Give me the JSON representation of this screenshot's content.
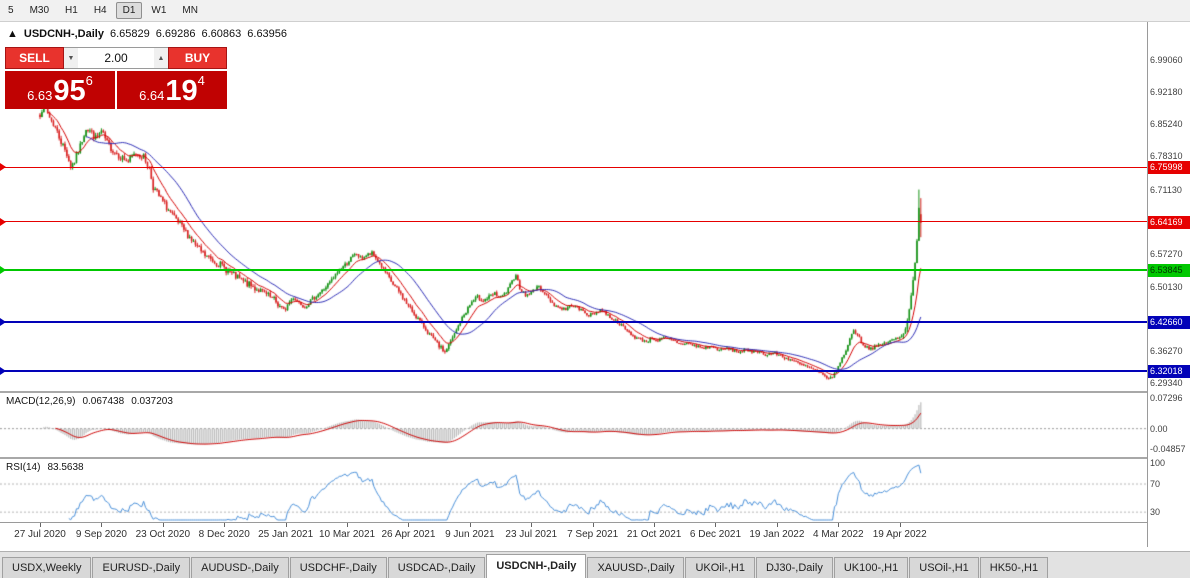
{
  "toolbar": {
    "timeframes": [
      {
        "label": "5",
        "active": false
      },
      {
        "label": "M30",
        "active": false
      },
      {
        "label": "H1",
        "active": false
      },
      {
        "label": "H4",
        "active": false
      },
      {
        "label": "D1",
        "active": true
      },
      {
        "label": "W1",
        "active": false
      },
      {
        "label": "MN",
        "active": false
      }
    ]
  },
  "chart": {
    "title_marker": "▲",
    "symbol_title": "USDCNH-,Daily",
    "ohlc": {
      "open": "6.65829",
      "high": "6.69286",
      "low": "6.60863",
      "close": "6.63956"
    }
  },
  "trade_panel": {
    "sell_label": "SELL",
    "buy_label": "BUY",
    "volume": "2.00",
    "vol_down_glyph": "▼",
    "vol_up_glyph": "▲",
    "sell_price": {
      "small": "6.63",
      "big": "95",
      "sup": "6"
    },
    "buy_price": {
      "small": "6.64",
      "big": "19",
      "sup": "4"
    }
  },
  "price_axis": {
    "labels": [
      {
        "text": "6.99060",
        "price": 6.9906
      },
      {
        "text": "6.92180",
        "price": 6.9218
      },
      {
        "text": "6.85240",
        "price": 6.8524
      },
      {
        "text": "6.78310",
        "price": 6.7831
      },
      {
        "text": "6.71130",
        "price": 6.7113
      },
      {
        "text": "6.57270",
        "price": 6.5727
      },
      {
        "text": "6.50130",
        "price": 6.5013
      },
      {
        "text": "6.36270",
        "price": 6.3627
      },
      {
        "text": "6.29340",
        "price": 6.2934
      }
    ]
  },
  "hlines": [
    {
      "text": "6.75998",
      "price": 6.75998,
      "color": "#e60000",
      "thickness": 1,
      "badge_text": "#ffffff"
    },
    {
      "text": "6.64169",
      "price": 6.64169,
      "color": "#e60000",
      "thickness": 1,
      "badge_text": "#ffffff"
    },
    {
      "text": "6.53845",
      "price": 6.53845,
      "color": "#00c800",
      "thickness": 2,
      "badge_text": "#003300"
    },
    {
      "text": "6.42660",
      "price": 6.4266,
      "color": "#0202b8",
      "thickness": 2,
      "badge_text": "#ffffff"
    },
    {
      "text": "6.32018",
      "price": 6.32018,
      "color": "#0202b8",
      "thickness": 2,
      "badge_text": "#ffffff"
    }
  ],
  "indicators": {
    "macd": {
      "name": "MACD(12,26,9)",
      "value_main": "0.067438",
      "value_signal": "0.037203",
      "axis": [
        {
          "text": "0.07296",
          "value": 0.07296
        },
        {
          "text": "0.00",
          "value": 0
        },
        {
          "text": "-0.04857",
          "value": -0.04857
        }
      ],
      "range": {
        "max": 0.0846,
        "min": -0.065
      },
      "levels": [
        0
      ]
    },
    "rsi": {
      "name": "RSI(14)",
      "value": "83.5638",
      "axis": [
        {
          "text": "100",
          "value": 100
        },
        {
          "text": "70",
          "value": 70
        },
        {
          "text": "30",
          "value": 30
        }
      ],
      "range": {
        "max": 105.6,
        "min": 17.4
      },
      "levels": [
        70,
        30
      ]
    }
  },
  "time_axis": {
    "labels": [
      "27 Jul 2020",
      "9 Sep 2020",
      "23 Oct 2020",
      "8 Dec 2020",
      "25 Jan 2021",
      "10 Mar 2021",
      "26 Apr 2021",
      "9 Jun 2021",
      "23 Jul 2021",
      "7 Sep 2021",
      "21 Oct 2021",
      "6 Dec 2021",
      "19 Jan 2022",
      "4 Mar 2022",
      "19 Apr 2022"
    ]
  },
  "tabs": [
    {
      "label": "USDX,Weekly",
      "active": false
    },
    {
      "label": "EURUSD-,Daily",
      "active": false
    },
    {
      "label": "AUDUSD-,Daily",
      "active": false
    },
    {
      "label": "USDCHF-,Daily",
      "active": false
    },
    {
      "label": "USDCAD-,Daily",
      "active": false
    },
    {
      "label": "USDCNH-,Daily",
      "active": true
    },
    {
      "label": "XAUUSD-,Daily",
      "active": false
    },
    {
      "label": "UKOil-,H1",
      "active": false
    },
    {
      "label": "DJ30-,Daily",
      "active": false
    },
    {
      "label": "UK100-,H1",
      "active": false
    },
    {
      "label": "USOil-,H1",
      "active": false
    },
    {
      "label": "HK50-,H1",
      "active": false
    }
  ],
  "chart_data": {
    "type": "candlestick",
    "symbol": "USDCNH-",
    "timeframe": "Daily",
    "price_range": {
      "min": 6.2792,
      "max": 7.0726
    },
    "days_total": 460,
    "last_candle": {
      "open": 6.65829,
      "high": 6.69286,
      "low": 6.60863,
      "close": 6.63956
    },
    "spike_high": 6.7113,
    "anchors": [
      [
        0,
        6.875
      ],
      [
        2,
        6.895
      ],
      [
        5,
        6.868
      ],
      [
        8,
        6.845
      ],
      [
        11,
        6.815
      ],
      [
        14,
        6.788
      ],
      [
        16,
        6.762
      ],
      [
        18,
        6.772
      ],
      [
        21,
        6.805
      ],
      [
        24,
        6.845
      ],
      [
        26,
        6.838
      ],
      [
        29,
        6.822
      ],
      [
        32,
        6.836
      ],
      [
        35,
        6.812
      ],
      [
        38,
        6.796
      ],
      [
        42,
        6.782
      ],
      [
        46,
        6.772
      ],
      [
        50,
        6.79
      ],
      [
        54,
        6.782
      ],
      [
        57,
        6.757
      ],
      [
        59,
        6.717
      ],
      [
        62,
        6.697
      ],
      [
        66,
        6.673
      ],
      [
        70,
        6.649
      ],
      [
        74,
        6.629
      ],
      [
        78,
        6.609
      ],
      [
        82,
        6.586
      ],
      [
        86,
        6.569
      ],
      [
        90,
        6.559
      ],
      [
        94,
        6.549
      ],
      [
        98,
        6.536
      ],
      [
        102,
        6.523
      ],
      [
        106,
        6.513
      ],
      [
        110,
        6.503
      ],
      [
        114,
        6.495
      ],
      [
        118,
        6.484
      ],
      [
        122,
        6.473
      ],
      [
        125,
        6.459
      ],
      [
        127,
        6.449
      ],
      [
        129,
        6.463
      ],
      [
        132,
        6.479
      ],
      [
        135,
        6.469
      ],
      [
        138,
        6.459
      ],
      [
        141,
        6.471
      ],
      [
        144,
        6.483
      ],
      [
        147,
        6.493
      ],
      [
        150,
        6.506
      ],
      [
        153,
        6.521
      ],
      [
        156,
        6.539
      ],
      [
        159,
        6.549
      ],
      [
        162,
        6.563
      ],
      [
        165,
        6.573
      ],
      [
        167,
        6.563
      ],
      [
        170,
        6.569
      ],
      [
        173,
        6.573
      ],
      [
        176,
        6.559
      ],
      [
        179,
        6.539
      ],
      [
        182,
        6.519
      ],
      [
        185,
        6.501
      ],
      [
        188,
        6.486
      ],
      [
        191,
        6.466
      ],
      [
        194,
        6.449
      ],
      [
        197,
        6.433
      ],
      [
        200,
        6.416
      ],
      [
        203,
        6.399
      ],
      [
        206,
        6.383
      ],
      [
        209,
        6.369
      ],
      [
        211,
        6.361
      ],
      [
        213,
        6.376
      ],
      [
        216,
        6.399
      ],
      [
        219,
        6.426
      ],
      [
        222,
        6.449
      ],
      [
        225,
        6.469
      ],
      [
        228,
        6.479
      ],
      [
        231,
        6.473
      ],
      [
        234,
        6.479
      ],
      [
        237,
        6.486
      ],
      [
        240,
        6.479
      ],
      [
        243,
        6.489
      ],
      [
        246,
        6.513
      ],
      [
        248,
        6.529
      ],
      [
        250,
        6.499
      ],
      [
        253,
        6.483
      ],
      [
        256,
        6.489
      ],
      [
        259,
        6.503
      ],
      [
        262,
        6.493
      ],
      [
        265,
        6.476
      ],
      [
        268,
        6.463
      ],
      [
        271,
        6.456
      ],
      [
        274,
        6.453
      ],
      [
        277,
        6.463
      ],
      [
        280,
        6.456
      ],
      [
        283,
        6.449
      ],
      [
        286,
        6.441
      ],
      [
        289,
        6.444
      ],
      [
        292,
        6.453
      ],
      [
        295,
        6.444
      ],
      [
        298,
        6.433
      ],
      [
        301,
        6.426
      ],
      [
        304,
        6.414
      ],
      [
        307,
        6.403
      ],
      [
        310,
        6.393
      ],
      [
        313,
        6.388
      ],
      [
        316,
        6.384
      ],
      [
        319,
        6.391
      ],
      [
        322,
        6.386
      ],
      [
        325,
        6.391
      ],
      [
        328,
        6.388
      ],
      [
        331,
        6.384
      ],
      [
        334,
        6.378
      ],
      [
        337,
        6.381
      ],
      [
        340,
        6.376
      ],
      [
        343,
        6.373
      ],
      [
        346,
        6.369
      ],
      [
        349,
        6.373
      ],
      [
        352,
        6.369
      ],
      [
        355,
        6.365
      ],
      [
        358,
        6.369
      ],
      [
        361,
        6.365
      ],
      [
        364,
        6.361
      ],
      [
        367,
        6.365
      ],
      [
        370,
        6.361
      ],
      [
        373,
        6.365
      ],
      [
        376,
        6.359
      ],
      [
        379,
        6.355
      ],
      [
        382,
        6.359
      ],
      [
        385,
        6.355
      ],
      [
        388,
        6.349
      ],
      [
        391,
        6.345
      ],
      [
        394,
        6.339
      ],
      [
        397,
        6.333
      ],
      [
        400,
        6.329
      ],
      [
        403,
        6.323
      ],
      [
        406,
        6.316
      ],
      [
        409,
        6.309
      ],
      [
        412,
        6.304
      ],
      [
        414,
        6.313
      ],
      [
        416,
        6.329
      ],
      [
        418,
        6.347
      ],
      [
        420,
        6.366
      ],
      [
        422,
        6.389
      ],
      [
        424,
        6.409
      ],
      [
        426,
        6.399
      ],
      [
        428,
        6.383
      ],
      [
        430,
        6.373
      ],
      [
        433,
        6.369
      ],
      [
        436,
        6.373
      ],
      [
        439,
        6.378
      ],
      [
        442,
        6.383
      ],
      [
        445,
        6.388
      ],
      [
        448,
        6.393
      ],
      [
        450,
        6.401
      ],
      [
        451,
        6.411
      ],
      [
        452,
        6.429
      ],
      [
        453,
        6.453
      ],
      [
        454,
        6.483
      ],
      [
        455,
        6.516
      ],
      [
        456,
        6.553
      ],
      [
        457,
        6.601
      ],
      [
        458,
        6.672
      ],
      [
        459,
        6.63956
      ]
    ],
    "colors": {
      "up": "#179317",
      "down": "#d92424",
      "ma_fast": "#d40000",
      "ma_slow": "#2b2bb5",
      "macd_hist": "#bdbdbd",
      "macd_signal": "#cc0000",
      "rsi": "#4a90d9",
      "level_dotted": "#b4b4b4"
    }
  }
}
